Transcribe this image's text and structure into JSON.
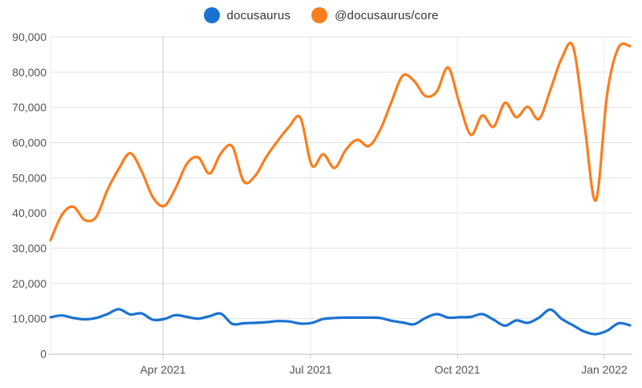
{
  "legend": {
    "items": [
      {
        "label": "docusaurus",
        "color": "#1a73d2"
      },
      {
        "label": "@docusaurus/core",
        "color": "#fa7e1e"
      }
    ]
  },
  "chart_data": {
    "type": "line",
    "title": "",
    "xlabel": "",
    "ylabel": "",
    "grid": true,
    "legend_position": "top",
    "x_axis": {
      "tick_labels": [
        "Apr 2021",
        "Jul 2021",
        "Oct 2021",
        "Jan 2022"
      ],
      "tick_index_positions": [
        9.89,
        22.89,
        35.81,
        48.74
      ],
      "note": "52 weekly samples, late Jan 2021 to mid Jan 2022"
    },
    "y_axis": {
      "min": 0,
      "max": 90000,
      "tick_values": [
        0,
        10000,
        20000,
        30000,
        40000,
        50000,
        60000,
        70000,
        80000,
        90000
      ],
      "tick_labels": [
        "0",
        "10,000",
        "20,000",
        "30,000",
        "40,000",
        "50,000",
        "60,000",
        "70,000",
        "80,000",
        "90,000"
      ]
    },
    "series": [
      {
        "name": "docusaurus",
        "color": "#1a73d2",
        "values": [
          10400,
          10900,
          10200,
          9800,
          10200,
          11300,
          12700,
          11200,
          11500,
          9700,
          9900,
          11000,
          10500,
          10000,
          10700,
          11400,
          8500,
          8700,
          8800,
          9000,
          9300,
          9200,
          8600,
          8800,
          9900,
          10200,
          10300,
          10300,
          10300,
          10200,
          9400,
          8900,
          8400,
          10200,
          11300,
          10300,
          10400,
          10500,
          11300,
          9700,
          8000,
          9500,
          8800,
          10300,
          12600,
          9900,
          8100,
          6300,
          5600,
          6600,
          8700,
          8100
        ]
      },
      {
        "name": "@docusaurus/core",
        "color": "#fa7e1e",
        "values": [
          32300,
          39500,
          41800,
          38000,
          38800,
          46500,
          52500,
          57000,
          52000,
          44500,
          42000,
          47000,
          54000,
          55800,
          51200,
          57000,
          58900,
          49000,
          50500,
          56000,
          60500,
          64500,
          67000,
          53500,
          56700,
          52800,
          58000,
          60800,
          59000,
          63500,
          71500,
          79000,
          77500,
          73200,
          74500,
          81300,
          71000,
          62200,
          67700,
          64500,
          71300,
          67200,
          70200,
          66700,
          75000,
          84000,
          87200,
          65000,
          43600,
          74000,
          87000,
          87400
        ]
      }
    ],
    "style": {
      "h_gridline_color": "#e0e0e0",
      "v_gridline_color": "#ececec",
      "first_v_gridline_color": "#c9c9c9",
      "axis_color": "#cccccc",
      "tick_text_color": "#545454"
    }
  }
}
